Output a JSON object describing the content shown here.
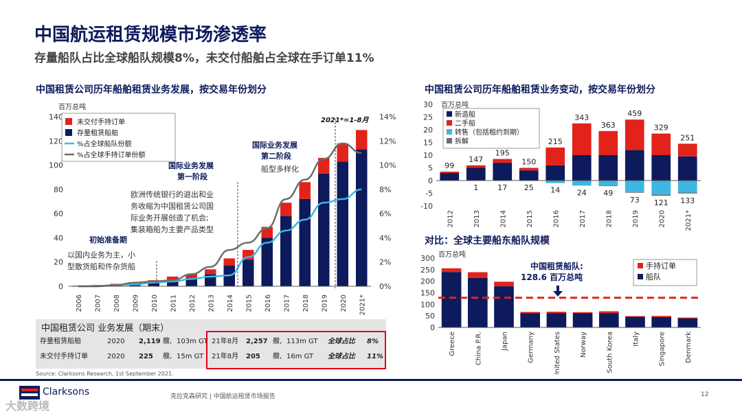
{
  "header": {
    "title": "中国航运租赁规模市场渗透率",
    "subtitle": "存量船队占比全球船队规模8%，未交付船舶占全球在手订单11%"
  },
  "left_chart": {
    "section_title": "中国租赁公司历年船舶租赁业务发展，按交易年份划分",
    "unit_label": "百万总吨",
    "annotations": {
      "note_2021": "2021*=1-8月",
      "stage_intl2_line1": "国际业务发展",
      "stage_intl2_line2": "第二阶段",
      "stage_intl2_desc": "船型多样化",
      "stage_intl1_line1": "国际业务发展",
      "stage_intl1_line2": "第一阶段",
      "stage_intl1_desc1": "欧洲传统银行的退出和业",
      "stage_intl1_desc2": "务收缩为中国租赁公司国",
      "stage_intl1_desc3": "际业务开展创造了机会;",
      "stage_intl1_desc4": "集装箱船为主要产品类型",
      "stage_init_title": "初始准备期",
      "stage_init_desc1": "以国内业务为主，小",
      "stage_init_desc2": "型散货船和件杂货船"
    }
  },
  "right_top": {
    "section_title": "中国租赁公司历年船舶租赁业务变动，按交易年份划分",
    "unit_label": "百万总吨"
  },
  "right_bottom": {
    "section_title": "对比：全球主要船东船队规模",
    "unit_label": "百万总吨",
    "callout_line1": "中国租赁船队:",
    "callout_line2": "128.6 百万总吨"
  },
  "table": {
    "header": "中国租赁公司  业务发展（期末）",
    "rows": [
      {
        "label": "存量租赁船舶",
        "y1": "2020",
        "n1": "2,119",
        "u1": "艘,",
        "gt1": "103m GT",
        "y2": "21年8月",
        "n2": "2,257",
        "u2": "艘,",
        "gt2": "113m GT",
        "share_label": "全球占比",
        "share": "8%"
      },
      {
        "label": "未交付手持订单",
        "y1": "2020",
        "n1": "225",
        "u1": "艘,",
        "gt1": "15m GT",
        "y2": "21年8月",
        "n2": "205",
        "u2": "艘,",
        "gt2": "16m GT",
        "share_label": "全球占比",
        "share": "11%"
      }
    ]
  },
  "footer": {
    "source": "Source: Clarksons Research, 1st September 2021.",
    "report": "克拉克森研究 | 中国航运租赁市场报告",
    "page": "12",
    "brand": "Clarksons",
    "watermark": "大数跨境"
  },
  "colors": {
    "navy": "#0d1a5c",
    "red": "#e2231a",
    "cyan": "#3db7e4",
    "gray": "#6d6d6d",
    "lightblue": "#2aa6e0"
  },
  "chart_data": [
    {
      "type": "bar",
      "title": "中国租赁公司历年船舶租赁业务发展，按交易年份划分",
      "ylabel": "百万总吨",
      "ylim": [
        0,
        140
      ],
      "y2lim": [
        0,
        14
      ],
      "y2_format": "percent",
      "categories": [
        "2006",
        "2007",
        "2008",
        "2009",
        "2010",
        "2011",
        "2012",
        "2013",
        "2014",
        "2015",
        "2016",
        "2017",
        "2018",
        "2019",
        "2020",
        "2021*"
      ],
      "series": [
        {
          "name": "未交付手持订单",
          "kind": "bar-stack",
          "color": "#e2231a",
          "values": [
            0.3,
            0.5,
            1,
            1.5,
            2,
            3,
            3,
            4,
            6,
            8,
            9,
            11,
            14,
            13,
            15,
            16
          ]
        },
        {
          "name": "存量租赁船舶",
          "kind": "bar-stack",
          "color": "#0d1a5c",
          "values": [
            0.2,
            0.5,
            1,
            1.5,
            3,
            5,
            7,
            10,
            17,
            22,
            40,
            58,
            72,
            93,
            103,
            113
          ]
        },
        {
          "name": "%占全球船队份额",
          "kind": "line-y2",
          "color": "#3db7e4",
          "values": [
            0,
            0,
            0.1,
            0.15,
            0.3,
            0.4,
            0.6,
            0.8,
            0.9,
            2.4,
            3.6,
            4.6,
            5.5,
            6.9,
            7.2,
            8
          ]
        },
        {
          "name": "%占全球手持订单份额",
          "kind": "line-y2",
          "color": "#6d6d6d",
          "values": [
            0,
            0,
            0.1,
            0.3,
            0.4,
            0.5,
            1.0,
            1.6,
            3.0,
            3.6,
            4.8,
            7.2,
            8.8,
            10.5,
            11.8,
            11.0
          ]
        }
      ],
      "ticks_y": [
        "0",
        "20",
        "40",
        "60",
        "80",
        "100",
        "120",
        "140"
      ],
      "ticks_y2": [
        "0%",
        "2%",
        "4%",
        "6%",
        "8%",
        "10%",
        "12%",
        "14%"
      ]
    },
    {
      "type": "bar",
      "title": "中国租赁公司历年船舶租赁业务变动，按交易年份划分",
      "ylabel": "百万总吨",
      "ylim": [
        -10,
        30
      ],
      "categories": [
        "2012",
        "2013",
        "2014",
        "2015",
        "2016",
        "2017",
        "2018",
        "2019",
        "2020",
        "2021*"
      ],
      "series": [
        {
          "name": "新造船",
          "color": "#0d1a5c",
          "values": [
            3,
            5,
            7,
            4,
            6,
            10,
            10,
            12,
            10,
            9.5
          ]
        },
        {
          "name": "二手船",
          "color": "#e2231a",
          "values": [
            0.5,
            1,
            1.5,
            1,
            7,
            12.5,
            9.5,
            12,
            8.5,
            5
          ]
        },
        {
          "name": "转售（包括租约到期）",
          "color": "#3db7e4",
          "values": [
            0,
            0,
            0,
            0,
            -1,
            -2,
            -2,
            -4.5,
            -5.5,
            -4.7
          ]
        },
        {
          "name": "拆解",
          "color": "#6d6d6d",
          "values": [
            0,
            0,
            0,
            0,
            0,
            0,
            -0.2,
            -0.3,
            -0.5,
            -0.4
          ]
        }
      ],
      "top_labels": [
        "99",
        "147",
        "195",
        "150",
        "215",
        "343",
        "363",
        "459",
        "329",
        "251"
      ],
      "bottom_labels": [
        "",
        "1",
        "17",
        "25",
        "14",
        "24",
        "49",
        "73",
        "121",
        "133"
      ],
      "ticks_y": [
        "-10",
        "-5",
        "0",
        "5",
        "10",
        "15",
        "20",
        "25",
        "30"
      ]
    },
    {
      "type": "bar",
      "title": "对比：全球主要船东船队规模",
      "ylabel": "百万总吨",
      "ylim": [
        0,
        300
      ],
      "categories": [
        "Greece",
        "China P.R.",
        "Japan",
        "Germany",
        "United States",
        "Norway",
        "South Korea",
        "Italy",
        "Singapore",
        "Denmark"
      ],
      "series": [
        {
          "name": "船队",
          "color": "#0d1a5c",
          "values": [
            240,
            214,
            178,
            62,
            62,
            62,
            62,
            46,
            45,
            39
          ]
        },
        {
          "name": "手持订单",
          "color": "#e2231a",
          "values": [
            16,
            25,
            20,
            5,
            6,
            4,
            8,
            3,
            5,
            4
          ]
        }
      ],
      "reference_line": {
        "label": "中国租赁船队: 128.6 百万总吨",
        "value": 128.6
      },
      "ticks_y": [
        "0",
        "50",
        "100",
        "150",
        "200",
        "250",
        "300"
      ]
    }
  ]
}
